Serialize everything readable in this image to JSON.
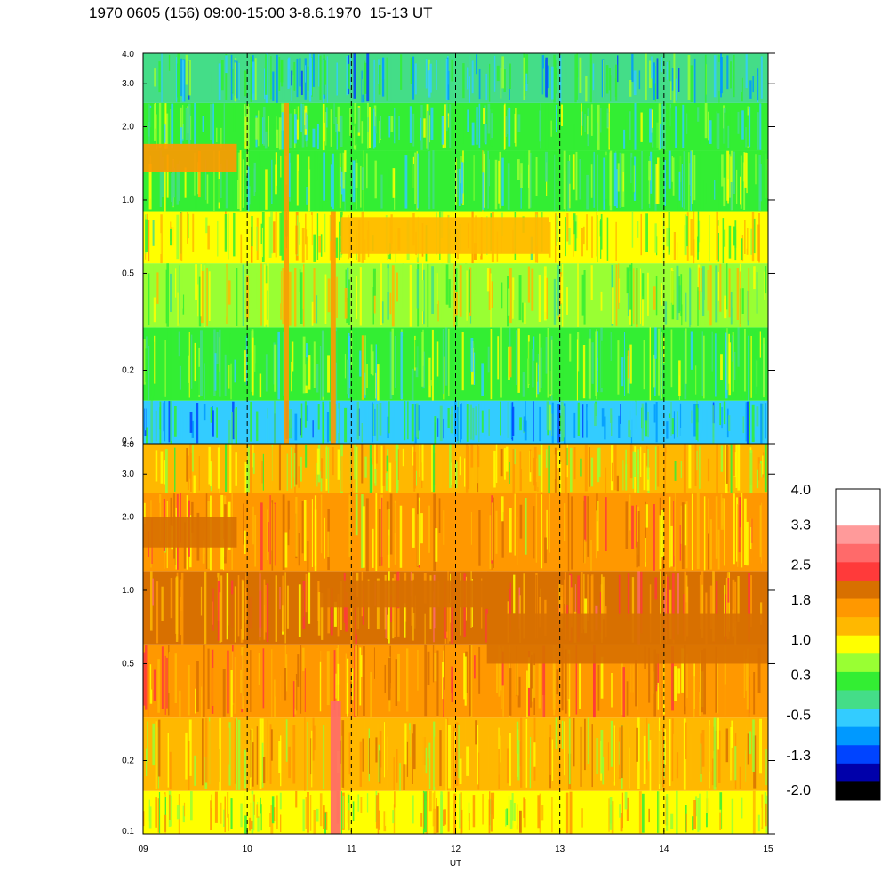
{
  "chart_data": [
    {
      "type": "heatmap",
      "panel": "top",
      "title": "1970 0605 (156) 09:00-15:00 3-8.6.1970  15-13 UT",
      "xlabel": "",
      "ylabel": "",
      "y_scale": "log",
      "ylim": [
        0.1,
        4.0
      ],
      "xlim": [
        9,
        15
      ],
      "y_ticks": [
        "0.1",
        "0.2",
        "0.5",
        "1.0",
        "2.0",
        "3.0",
        "4.0"
      ],
      "y_tick_values": [
        0.1,
        0.2,
        0.5,
        1.0,
        2.0,
        3.0,
        4.0
      ],
      "hour_markers": [
        10,
        11,
        12,
        13,
        14
      ],
      "bands": [
        {
          "y_range": [
            0.1,
            0.15
          ],
          "value": -0.3
        },
        {
          "y_range": [
            0.15,
            0.3
          ],
          "value": 0.4
        },
        {
          "y_range": [
            0.3,
            0.55
          ],
          "value": 0.7
        },
        {
          "y_range": [
            0.55,
            0.9
          ],
          "value": 0.9
        },
        {
          "y_range": [
            0.9,
            1.6
          ],
          "value": 0.4
        },
        {
          "y_range": [
            1.6,
            2.5
          ],
          "value": 0.2
        },
        {
          "y_range": [
            2.5,
            4.0
          ],
          "value": -0.2
        }
      ],
      "features": [
        {
          "x_range": [
            9.0,
            9.9
          ],
          "y_range": [
            1.3,
            1.7
          ],
          "value": 1.6
        },
        {
          "x_range": [
            10.9,
            12.9
          ],
          "y_range": [
            0.6,
            0.85
          ],
          "value": 1.2
        },
        {
          "x_range": [
            10.8,
            10.85
          ],
          "y_range": [
            0.1,
            0.9
          ],
          "value": 1.8
        },
        {
          "x_range": [
            10.35,
            10.4
          ],
          "y_range": [
            0.1,
            2.5
          ],
          "value": 1.6
        }
      ]
    },
    {
      "type": "heatmap",
      "panel": "bottom",
      "xlabel": "UT",
      "ylabel": "",
      "y_scale": "log",
      "ylim": [
        0.1,
        4.0
      ],
      "xlim": [
        9,
        15
      ],
      "x_ticks": [
        "09",
        "10",
        "11",
        "12",
        "13",
        "14",
        "15"
      ],
      "x_tick_values": [
        9,
        10,
        11,
        12,
        13,
        14,
        15
      ],
      "y_ticks": [
        "0.1",
        "0.2",
        "0.5",
        "1.0",
        "2.0",
        "3.0",
        "4.0"
      ],
      "y_tick_values": [
        0.1,
        0.2,
        0.5,
        1.0,
        2.0,
        3.0,
        4.0
      ],
      "hour_markers": [
        10,
        11,
        12,
        13,
        14
      ],
      "bands": [
        {
          "y_range": [
            0.1,
            0.15
          ],
          "value": 1.1
        },
        {
          "y_range": [
            0.15,
            0.3
          ],
          "value": 1.3
        },
        {
          "y_range": [
            0.3,
            0.6
          ],
          "value": 1.7
        },
        {
          "y_range": [
            0.6,
            1.2
          ],
          "value": 1.9
        },
        {
          "y_range": [
            1.2,
            2.5
          ],
          "value": 1.6
        },
        {
          "y_range": [
            2.5,
            4.0
          ],
          "value": 1.2
        }
      ],
      "features": [
        {
          "x_range": [
            9.0,
            9.9
          ],
          "y_range": [
            1.5,
            2.0
          ],
          "value": 2.2
        },
        {
          "x_range": [
            10.8,
            10.9
          ],
          "y_range": [
            0.1,
            0.35
          ],
          "value": 2.7
        },
        {
          "x_range": [
            10.7,
            12.3
          ],
          "y_range": [
            0.85,
            1.1
          ],
          "value": 2.0
        },
        {
          "x_range": [
            12.3,
            15.0
          ],
          "y_range": [
            0.5,
            0.8
          ],
          "value": 2.0
        }
      ]
    }
  ],
  "colorbar": {
    "labels": [
      "4.0",
      "3.3",
      "2.5",
      "1.8",
      "1.0",
      "0.3",
      "-0.5",
      "-1.3",
      "-2.0"
    ],
    "label_values": [
      4.0,
      3.3,
      2.5,
      1.8,
      1.0,
      0.3,
      -0.5,
      -1.3,
      -2.0
    ],
    "range": [
      -2.0,
      4.0
    ],
    "colors_top_to_bottom": [
      "#ffffff",
      "#ffffff",
      "#ff9a9a",
      "#ff6a6a",
      "#ff3a3a",
      "#d87000",
      "#ff9800",
      "#ffb800",
      "#ffff00",
      "#99ff33",
      "#33ee33",
      "#44dd88",
      "#33ccff",
      "#0099ff",
      "#0044ff",
      "#0000aa",
      "#000000"
    ]
  }
}
